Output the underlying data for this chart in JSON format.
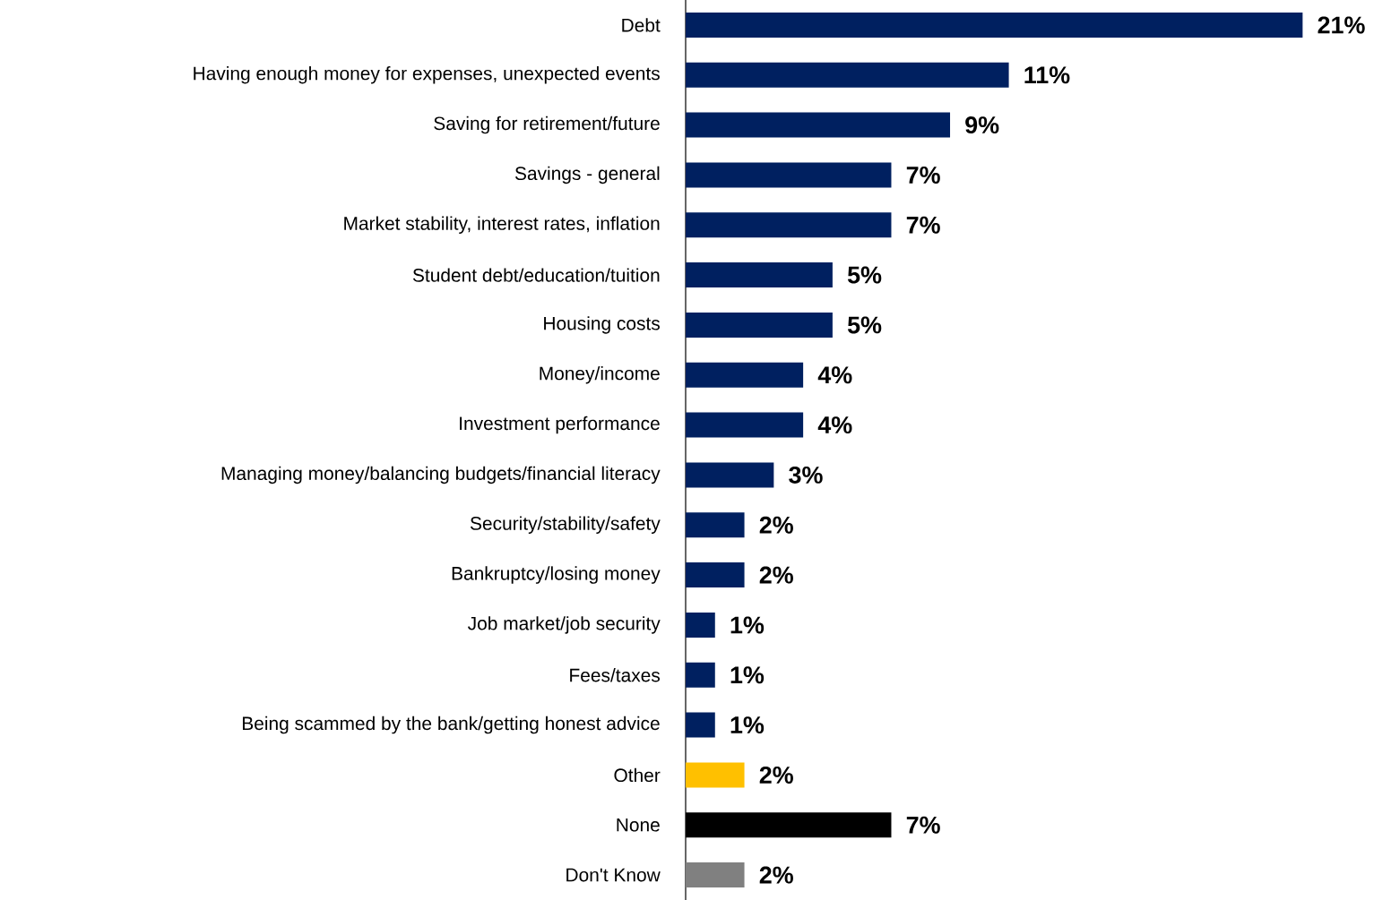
{
  "chart_data": {
    "type": "bar",
    "orientation": "horizontal",
    "categories": [
      "Debt",
      "Having enough money for expenses, unexpected events",
      "Saving for retirement/future",
      "Savings - general",
      "Market stability, interest rates, inflation",
      "Student debt/education/tuition",
      "Housing costs",
      "Money/income",
      "Investment performance",
      "Managing money/balancing budgets/financial literacy",
      "Security/stability/safety",
      "Bankruptcy/losing money",
      "Job market/job security",
      "Fees/taxes",
      "Being scammed by the bank/getting honest advice",
      "Other",
      "None",
      "Don't Know"
    ],
    "values": [
      21,
      11,
      9,
      7,
      7,
      5,
      5,
      4,
      4,
      3,
      2,
      2,
      1,
      1,
      1,
      2,
      7,
      2
    ],
    "value_labels": [
      "21%",
      "11%",
      "9%",
      "7%",
      "7%",
      "5%",
      "5%",
      "4%",
      "4%",
      "3%",
      "2%",
      "2%",
      "1%",
      "1%",
      "1%",
      "2%",
      "7%",
      "2%"
    ],
    "colors": [
      "#002060",
      "#002060",
      "#002060",
      "#002060",
      "#002060",
      "#002060",
      "#002060",
      "#002060",
      "#002060",
      "#002060",
      "#002060",
      "#002060",
      "#002060",
      "#002060",
      "#002060",
      "#ffc000",
      "#000000",
      "#808080"
    ]
  }
}
